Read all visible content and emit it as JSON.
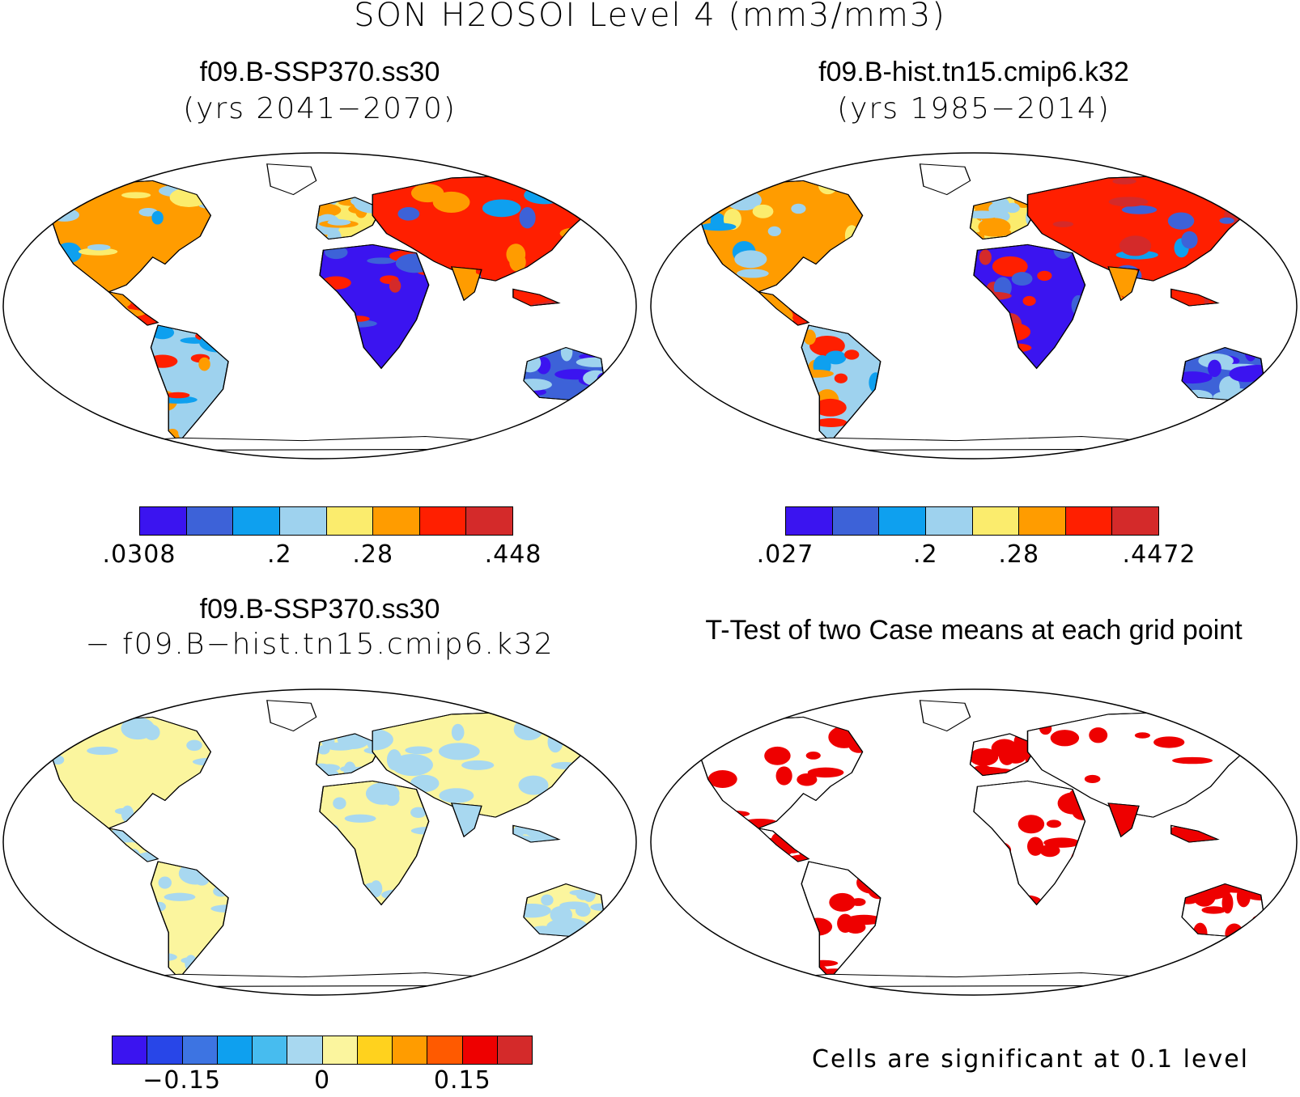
{
  "title": "SON H2OSOI Level 4 (mm3/mm3)",
  "panels": [
    {
      "id": "case1",
      "title": "f09.B-SSP370.ss30",
      "subtitle": "(yrs 2041−2070)",
      "style": "field"
    },
    {
      "id": "case2",
      "title": "f09.B-hist.tn15.cmip6.k32",
      "subtitle": "(yrs 1985−2014)",
      "style": "field"
    },
    {
      "id": "diff",
      "title": "f09.B-SSP370.ss30",
      "subtitle": "− f09.B−hist.tn15.cmip6.k32",
      "style": "diff"
    },
    {
      "id": "ttest",
      "title": "T-Test of two Case means at each grid point",
      "subtitle": "",
      "style": "sig"
    }
  ],
  "colorbars": {
    "case1": {
      "colors": [
        "#3b14f0",
        "#3d62d8",
        "#0ea0ef",
        "#9ed2ee",
        "#fbec6d",
        "#ff9c00",
        "#ff1f00",
        "#d42a2a"
      ],
      "ticks": [
        ".0308",
        ".2",
        ".28",
        ".448"
      ],
      "tick_index": [
        0,
        3,
        5,
        8
      ]
    },
    "case2": {
      "colors": [
        "#3b14f0",
        "#3d62d8",
        "#0ea0ef",
        "#9ed2ee",
        "#fbec6d",
        "#ff9c00",
        "#ff1f00",
        "#d42a2a"
      ],
      "ticks": [
        ".027",
        ".2",
        ".28",
        ".4472"
      ],
      "tick_index": [
        0,
        3,
        5,
        8
      ]
    },
    "diff": {
      "colors": [
        "#3b14f0",
        "#2846e8",
        "#3d74e2",
        "#0ea0ef",
        "#47bcef",
        "#a8d8f0",
        "#fbf59e",
        "#ffd21e",
        "#ff9c00",
        "#ff5a00",
        "#ee0000",
        "#d42a2a"
      ],
      "ticks": [
        "−0.15",
        "0",
        "0.15"
      ],
      "tick_index": [
        2,
        6,
        10
      ]
    }
  },
  "significance_note": "Cells are significant at 0.1 level",
  "chart_data": [
    {
      "type": "heatmap",
      "title": "f09.B-SSP370.ss30",
      "subtitle": "(yrs 2041−2070)",
      "variable": "H2OSOI Level 4",
      "season": "SON",
      "units": "mm3/mm3",
      "colorbar_range": [
        0.0308,
        0.448
      ],
      "colorbar_ticks": [
        0.0308,
        0.2,
        0.28,
        0.448
      ],
      "levels": 8
    },
    {
      "type": "heatmap",
      "title": "f09.B-hist.tn15.cmip6.k32",
      "subtitle": "(yrs 1985−2014)",
      "variable": "H2OSOI Level 4",
      "season": "SON",
      "units": "mm3/mm3",
      "colorbar_range": [
        0.027,
        0.4472
      ],
      "colorbar_ticks": [
        0.027,
        0.2,
        0.28,
        0.4472
      ],
      "levels": 8
    },
    {
      "type": "heatmap",
      "title": "f09.B-SSP370.ss30 − f09.B−hist.tn15.cmip6.k32",
      "colorbar_ticks": [
        -0.15,
        0,
        0.15
      ],
      "levels": 12
    },
    {
      "type": "heatmap",
      "title": "T-Test of two Case means at each grid point",
      "note": "Cells are significant at 0.1 level",
      "significance_level": 0.1
    }
  ]
}
